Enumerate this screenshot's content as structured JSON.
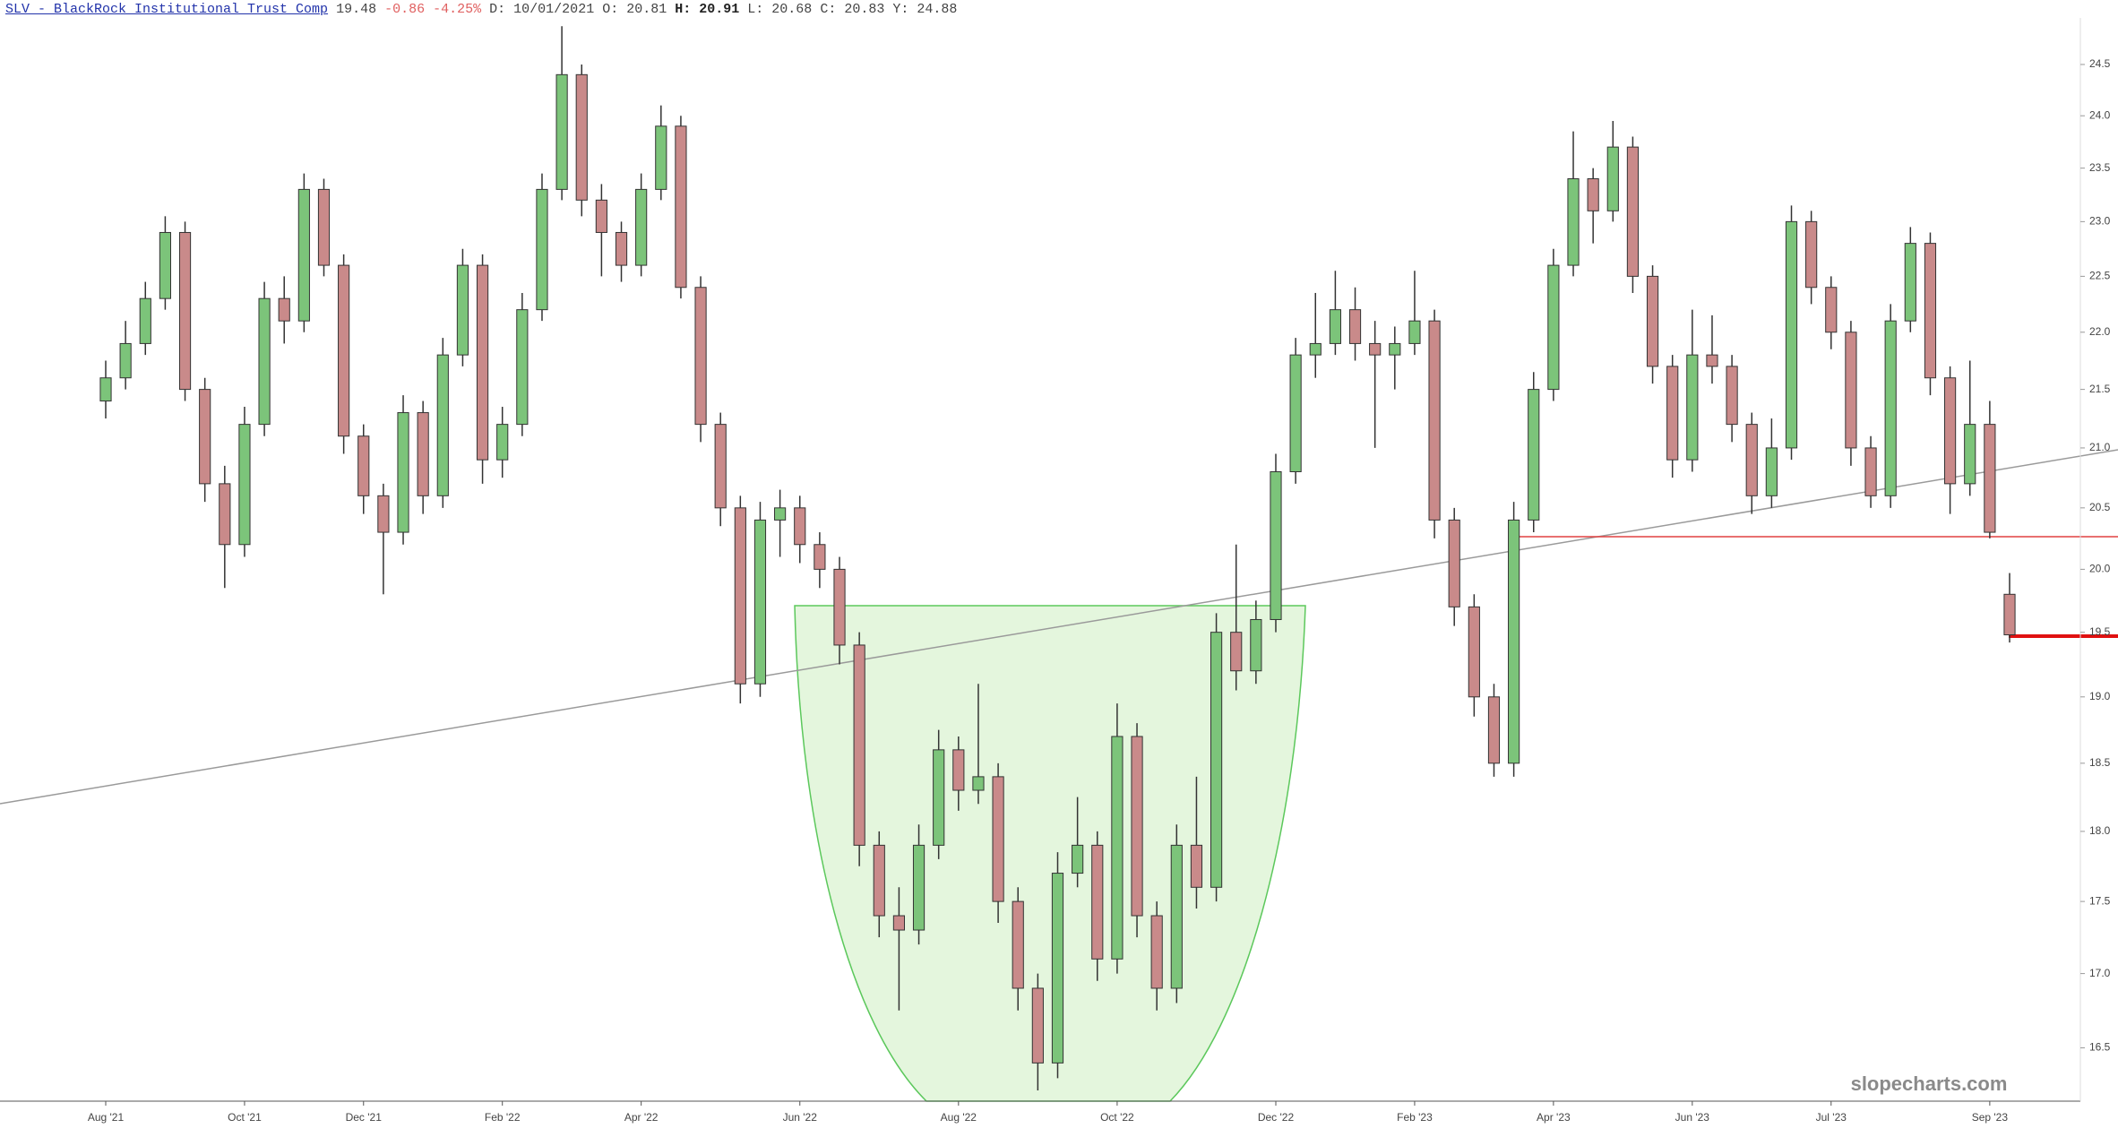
{
  "chart_data": {
    "type": "candlestick",
    "title": "SLV - BlackRock Institutional Trust Comp",
    "last": "19.48",
    "change": "-0.86",
    "change_pct": "-4.25%",
    "quote": [
      "D: 10/01/2021",
      "O: 20.81",
      "H: 20.91",
      "L: 20.68",
      "C: 20.83",
      "Y: 24.88"
    ],
    "watermark": "slopecharts.com",
    "log_scale": true,
    "grid": false,
    "up_color": "#7cc47a",
    "down_color": "#c98a8a",
    "categories": [
      "Aug '21",
      null,
      null,
      null,
      null,
      null,
      null,
      "Oct '21",
      null,
      null,
      null,
      null,
      null,
      "Dec '21",
      null,
      null,
      null,
      null,
      null,
      null,
      "Feb '22",
      null,
      null,
      null,
      null,
      null,
      null,
      "Apr '22",
      null,
      null,
      null,
      null,
      null,
      null,
      null,
      "Jun '22",
      null,
      null,
      null,
      null,
      null,
      null,
      null,
      "Aug '22",
      null,
      null,
      null,
      null,
      null,
      null,
      null,
      "Oct '22",
      null,
      null,
      null,
      null,
      null,
      null,
      null,
      "Dec '22",
      null,
      null,
      null,
      null,
      null,
      null,
      "Feb '23",
      null,
      null,
      null,
      null,
      null,
      null,
      "Apr '23",
      null,
      null,
      null,
      null,
      null,
      null,
      "Jun '23",
      null,
      null,
      null,
      null,
      null,
      null,
      "Jul '23",
      null,
      null,
      null,
      null,
      null,
      null,
      null,
      "Sep '23",
      null
    ],
    "open": [
      21.4,
      21.6,
      21.9,
      22.3,
      22.9,
      21.5,
      20.7,
      20.2,
      21.2,
      22.3,
      22.1,
      23.3,
      22.6,
      21.1,
      20.6,
      20.3,
      21.3,
      20.6,
      21.8,
      22.6,
      20.9,
      21.2,
      22.2,
      23.3,
      24.4,
      23.2,
      22.9,
      22.6,
      23.3,
      23.9,
      22.4,
      21.2,
      20.5,
      19.1,
      20.4,
      20.5,
      20.2,
      20.0,
      19.4,
      17.9,
      17.4,
      17.3,
      17.9,
      18.6,
      18.3,
      18.4,
      17.5,
      16.9,
      16.4,
      17.7,
      17.9,
      17.1,
      18.7,
      17.4,
      16.9,
      17.9,
      17.6,
      19.5,
      19.2,
      19.6,
      20.8,
      21.8,
      21.9,
      22.2,
      21.9,
      21.8,
      21.9,
      22.1,
      20.4,
      19.7,
      19.0,
      18.5,
      20.4,
      21.5,
      22.6,
      23.4,
      23.1,
      23.7,
      22.5,
      21.7,
      20.9,
      21.8,
      21.7,
      21.2,
      20.6,
      21.0,
      23.0,
      22.4,
      22.0,
      21.0,
      20.6,
      22.1,
      22.8,
      21.6,
      20.7,
      21.2,
      19.8
    ],
    "high": [
      21.75,
      22.1,
      22.45,
      23.05,
      23.0,
      21.6,
      20.85,
      21.35,
      22.45,
      22.5,
      23.45,
      23.4,
      22.7,
      21.2,
      20.7,
      21.45,
      21.4,
      21.95,
      22.75,
      22.7,
      21.35,
      22.35,
      23.45,
      24.88,
      24.5,
      23.35,
      23.0,
      23.45,
      24.1,
      24.0,
      22.5,
      21.3,
      20.6,
      20.55,
      20.65,
      20.6,
      20.3,
      20.1,
      19.5,
      18.0,
      17.6,
      18.05,
      18.75,
      18.7,
      19.1,
      18.5,
      17.6,
      17.0,
      17.85,
      18.25,
      18.0,
      18.95,
      18.8,
      17.5,
      18.05,
      18.4,
      19.65,
      20.2,
      19.75,
      20.95,
      21.95,
      22.35,
      22.55,
      22.4,
      22.1,
      22.05,
      22.55,
      22.2,
      20.5,
      19.8,
      19.1,
      20.55,
      21.65,
      22.75,
      23.85,
      23.5,
      23.95,
      23.8,
      22.6,
      21.8,
      22.2,
      22.15,
      21.8,
      21.3,
      21.25,
      23.15,
      23.1,
      22.5,
      22.1,
      21.1,
      22.25,
      22.95,
      22.9,
      21.7,
      21.75,
      21.4,
      19.97
    ],
    "low": [
      21.25,
      21.5,
      21.8,
      22.2,
      21.4,
      20.55,
      19.85,
      20.1,
      21.1,
      21.9,
      22.0,
      22.5,
      20.95,
      20.45,
      19.8,
      20.2,
      20.45,
      20.5,
      21.7,
      20.7,
      20.75,
      21.1,
      22.1,
      23.2,
      23.05,
      22.5,
      22.45,
      22.5,
      23.2,
      22.3,
      21.05,
      20.35,
      18.95,
      19.0,
      20.1,
      20.05,
      19.85,
      19.25,
      17.75,
      17.25,
      16.75,
      17.2,
      17.8,
      18.15,
      18.2,
      17.35,
      16.75,
      16.22,
      16.3,
      17.6,
      16.95,
      17.0,
      17.25,
      16.75,
      16.8,
      17.45,
      17.5,
      19.05,
      19.1,
      19.5,
      20.7,
      21.6,
      21.8,
      21.75,
      21.0,
      21.5,
      21.8,
      20.25,
      19.55,
      18.85,
      18.4,
      18.4,
      20.3,
      21.4,
      22.5,
      22.8,
      23.0,
      22.35,
      21.55,
      20.75,
      20.8,
      21.55,
      21.05,
      20.45,
      20.5,
      20.9,
      22.25,
      21.85,
      20.85,
      20.5,
      20.5,
      22.0,
      21.45,
      20.45,
      20.6,
      20.25,
      19.42
    ],
    "close": [
      21.6,
      21.9,
      22.3,
      22.9,
      21.5,
      20.7,
      20.2,
      21.2,
      22.3,
      22.1,
      23.3,
      22.6,
      21.1,
      20.6,
      20.3,
      21.3,
      20.6,
      21.8,
      22.6,
      20.9,
      21.2,
      22.2,
      23.3,
      24.4,
      23.2,
      22.9,
      22.6,
      23.3,
      23.9,
      22.4,
      21.2,
      20.5,
      19.1,
      20.4,
      20.5,
      20.2,
      20.0,
      19.4,
      17.9,
      17.4,
      17.3,
      17.9,
      18.6,
      18.3,
      18.4,
      17.5,
      16.9,
      16.4,
      17.7,
      17.9,
      17.1,
      18.7,
      17.4,
      16.9,
      17.9,
      17.6,
      19.5,
      19.2,
      19.6,
      20.8,
      21.8,
      21.9,
      22.2,
      21.9,
      21.8,
      21.9,
      22.1,
      20.4,
      19.7,
      19.0,
      18.5,
      20.4,
      21.5,
      22.6,
      23.4,
      23.1,
      23.7,
      22.5,
      21.7,
      20.9,
      21.8,
      21.7,
      21.2,
      20.6,
      21.0,
      23.0,
      22.4,
      22.0,
      21.0,
      20.6,
      22.1,
      22.8,
      21.6,
      20.7,
      21.2,
      20.3,
      19.48
    ],
    "ylim": [
      16.15,
      24.9
    ],
    "yticks": [
      16.5,
      {
        "value": 17,
        "label": "17.0"
      },
      17.5,
      {
        "value": 18,
        "label": "18.0"
      },
      18.5,
      {
        "value": 19,
        "label": "19.0"
      },
      19.5,
      {
        "value": 20,
        "label": "20.0"
      },
      20.5,
      {
        "value": 21,
        "label": "21.0"
      },
      21.5,
      {
        "value": 22,
        "label": "22.0"
      },
      22.5,
      {
        "value": 23,
        "label": "23.0"
      },
      23.5,
      {
        "value": 24,
        "label": "24.0"
      },
      24.5
    ]
  }
}
